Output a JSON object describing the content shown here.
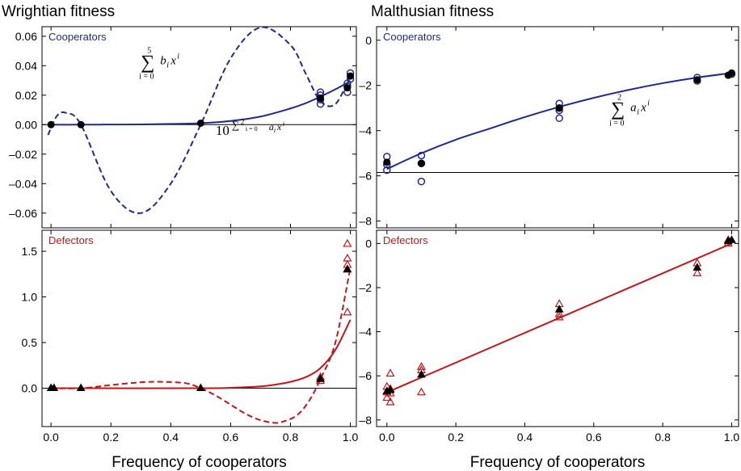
{
  "chart_data": [
    {
      "type": "line",
      "panel_title": "Wrightian fitness",
      "label": "Cooperators",
      "color": "#1f2a8a",
      "xlim": [
        -0.03,
        1.02
      ],
      "ylim": [
        -0.07,
        0.0665
      ],
      "yticks": [
        -0.06,
        -0.04,
        -0.02,
        0.0,
        0.02,
        0.04,
        0.06
      ],
      "ytick_labels": [
        "–0.06",
        "–0.04",
        "–0.02",
        "0.00",
        "0.02",
        "0.04",
        "0.06"
      ],
      "hline": 0,
      "series": [
        {
          "style": "solid",
          "function": "exp_poly_fit",
          "x": [
            -0.01,
            0.1,
            0.2,
            0.3,
            0.4,
            0.5,
            0.6,
            0.7,
            0.8,
            0.85,
            0.9,
            0.95,
            1.0
          ],
          "y": [
            0,
            0,
            0.0001,
            0.0002,
            0.0005,
            0.001,
            0.0025,
            0.0055,
            0.011,
            0.0145,
            0.019,
            0.024,
            0.0295
          ]
        },
        {
          "style": "dashed",
          "function": "polynomial_fit",
          "x": [
            -0.01,
            0.02,
            0.05,
            0.1,
            0.2,
            0.3,
            0.4,
            0.5,
            0.6,
            0.7,
            0.8,
            0.85,
            0.9,
            0.95,
            1.0
          ],
          "y": [
            -0.007,
            0.006,
            0.008,
            0.0,
            -0.045,
            -0.06,
            -0.04,
            0.0,
            0.045,
            0.066,
            0.054,
            0.035,
            0.016,
            0.014,
            0.033
          ]
        }
      ],
      "points_open": {
        "x": [
          0.9,
          0.9,
          0.9,
          0.9,
          0.99,
          0.99,
          0.99,
          1.0,
          1.0
        ],
        "y": [
          0.014,
          0.017,
          0.02,
          0.022,
          0.022,
          0.026,
          0.028,
          0.031,
          0.035
        ]
      },
      "points_filled": {
        "x": [
          0.0,
          0.1,
          0.5,
          0.9,
          0.99,
          1.0
        ],
        "y": [
          0.0,
          0.0,
          0.001,
          0.018,
          0.025,
          0.033
        ]
      },
      "annotations": [
        {
          "latex_top": "5",
          "latex_sym": "∑",
          "latex_bottom": "i = 0",
          "latex_expr": "b",
          "sub": "i",
          "var": "x",
          "sup": "i",
          "x": 0.3,
          "y": 0.04
        },
        {
          "latex_base": "10",
          "latex_sym": "∑",
          "latex_top": "2",
          "latex_bottom": "i = 0",
          "latex_expr": "a",
          "sub": "i",
          "var": "x",
          "sup": "i",
          "x": 0.55,
          "y": -0.007
        }
      ]
    },
    {
      "type": "line",
      "panel_title": "Malthusian fitness",
      "label": "Cooperators",
      "color": "#1f2a8a",
      "xlim": [
        -0.03,
        1.02
      ],
      "ylim": [
        -8.3,
        0.6
      ],
      "yticks": [
        0,
        -2,
        -4,
        -6,
        -8
      ],
      "ytick_labels": [
        "0",
        "–2",
        "–4",
        "–6",
        "–8"
      ],
      "hline": -5.85,
      "series": [
        {
          "style": "solid",
          "function": "quadratic_fit",
          "x": [
            0,
            0.1,
            0.2,
            0.3,
            0.4,
            0.5,
            0.6,
            0.7,
            0.8,
            0.9,
            1.0
          ],
          "y": [
            -5.7,
            -5.0,
            -4.4,
            -3.9,
            -3.4,
            -2.95,
            -2.55,
            -2.2,
            -1.9,
            -1.65,
            -1.45
          ]
        }
      ],
      "points_open": {
        "x": [
          0.0,
          0.0,
          0.0,
          0.1,
          0.1,
          0.1,
          0.5,
          0.5,
          0.5,
          0.5,
          0.9,
          0.9,
          1.0
        ],
        "y": [
          -5.15,
          -5.5,
          -5.75,
          -5.1,
          -5.45,
          -6.25,
          -2.8,
          -3.0,
          -3.45,
          -3.1,
          -1.65,
          -1.8,
          -1.5
        ]
      },
      "points_filled": {
        "x": [
          0.0,
          0.1,
          0.5,
          0.9,
          0.99,
          1.0
        ],
        "y": [
          -5.4,
          -5.45,
          -3.0,
          -1.75,
          -1.55,
          -1.45
        ]
      },
      "annotations": [
        {
          "latex_sym": "∑",
          "latex_top": "2",
          "latex_bottom": "i = 0",
          "latex_expr": "a",
          "sub": "i",
          "var": "x",
          "sup": "i",
          "x": 0.65,
          "y": -3.2
        }
      ]
    },
    {
      "type": "line",
      "label": "Defectors",
      "color": "#c0161c",
      "xlim": [
        -0.03,
        1.02
      ],
      "ylim": [
        -0.42,
        1.73
      ],
      "yticks": [
        0.0,
        0.5,
        1.0,
        1.5
      ],
      "ytick_labels": [
        "0.0",
        "0.5",
        "1.0",
        "1.5"
      ],
      "hline": 0,
      "xlabel": "Frequency of cooperators",
      "xticks": [
        0.0,
        0.2,
        0.4,
        0.6,
        0.8,
        1.0
      ],
      "xtick_labels": [
        "0.0",
        "0.2",
        "0.4",
        "0.6",
        "0.8",
        "1.0"
      ],
      "series": [
        {
          "style": "solid",
          "function": "exp_poly_fit",
          "x": [
            0,
            0.5,
            0.6,
            0.7,
            0.75,
            0.8,
            0.85,
            0.9,
            0.95,
            1.0
          ],
          "y": [
            0,
            0,
            0.005,
            0.02,
            0.04,
            0.07,
            0.12,
            0.22,
            0.42,
            0.75
          ]
        },
        {
          "style": "dashed",
          "function": "polynomial_fit",
          "x": [
            0,
            0.1,
            0.2,
            0.3,
            0.37,
            0.45,
            0.5,
            0.55,
            0.6,
            0.65,
            0.7,
            0.75,
            0.78,
            0.82,
            0.86,
            0.9,
            0.95,
            1.0
          ],
          "y": [
            0,
            0,
            0.035,
            0.065,
            0.07,
            0.055,
            0.0,
            -0.08,
            -0.18,
            -0.28,
            -0.35,
            -0.38,
            -0.36,
            -0.3,
            -0.15,
            0.1,
            0.5,
            1.32
          ]
        }
      ],
      "points_open": {
        "x": [
          0.9,
          0.9,
          0.99,
          0.99,
          0.99,
          0.99,
          0.99
        ],
        "y": [
          0.08,
          0.12,
          1.58,
          1.42,
          1.35,
          1.3,
          0.83
        ]
      },
      "points_filled": {
        "x": [
          0.0,
          0.01,
          0.1,
          0.5,
          0.9,
          0.99
        ],
        "y": [
          0.0,
          0.0,
          0.0,
          0.0,
          0.1,
          1.3
        ]
      }
    },
    {
      "type": "line",
      "label": "Defectors",
      "color": "#c0161c",
      "xlim": [
        -0.03,
        1.02
      ],
      "ylim": [
        -8.3,
        0.6
      ],
      "yticks": [
        0,
        -2,
        -4,
        -6,
        -8
      ],
      "ytick_labels": [
        "0",
        "–2",
        "–4",
        "–6",
        "–8"
      ],
      "xlabel": "Frequency of cooperators",
      "xticks": [
        0.0,
        0.2,
        0.4,
        0.6,
        0.8,
        1.0
      ],
      "xtick_labels": [
        "0.0",
        "0.2",
        "0.4",
        "0.6",
        "0.8",
        "1.0"
      ],
      "series": [
        {
          "style": "solid",
          "function": "linear_fit",
          "x": [
            0.0,
            1.0
          ],
          "y": [
            -6.75,
            0.0
          ]
        }
      ],
      "points_open": {
        "x": [
          0.0,
          0.0,
          0.0,
          0.01,
          0.01,
          0.01,
          0.01,
          0.1,
          0.1,
          0.1,
          0.5,
          0.5,
          0.5,
          0.9,
          0.9,
          0.99,
          0.99
        ],
        "y": [
          -6.5,
          -6.75,
          -7.0,
          -6.6,
          -6.8,
          -7.2,
          -5.9,
          -5.6,
          -5.75,
          -6.75,
          -2.75,
          -3.2,
          -3.35,
          -0.9,
          -1.35,
          0.15,
          0.0
        ]
      },
      "points_filled": {
        "x": [
          0.0,
          0.01,
          0.1,
          0.5,
          0.9,
          0.99,
          1.0
        ],
        "y": [
          -6.7,
          -6.65,
          -5.95,
          -3.0,
          -1.1,
          0.1,
          0.15
        ]
      }
    }
  ]
}
